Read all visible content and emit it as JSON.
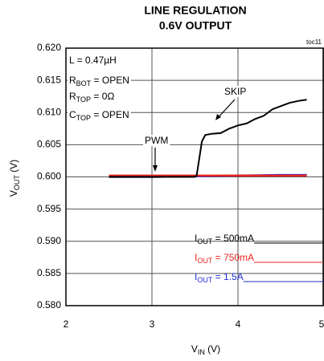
{
  "chart_data": {
    "type": "line",
    "title": [
      "LINE REGULATION",
      "0.6V OUTPUT"
    ],
    "note": "toc11",
    "xlabel": {
      "main": "V",
      "sub": "IN",
      "rest": " (V)"
    },
    "ylabel": {
      "main": "V",
      "sub": "OUT",
      "rest": " (V)"
    },
    "xlim": [
      2,
      5
    ],
    "xticks": [
      2,
      3,
      4,
      5
    ],
    "ylim": [
      0.58,
      0.62
    ],
    "yticks": [
      {
        "value": 0.58,
        "label": "0.580"
      },
      0.585,
      {
        "value": 0.59,
        "label": "0.590"
      },
      0.595,
      {
        "value": 0.6,
        "label": "0.600"
      },
      0.605,
      {
        "value": 0.61,
        "label": "0.610"
      },
      0.615,
      {
        "value": 0.62,
        "label": "0.620"
      }
    ],
    "grid": true,
    "annotations": [
      {
        "main": "L = 0.47µH"
      },
      {
        "main": "R",
        "sub": "BOT",
        "rest": " = OPEN"
      },
      {
        "main": "R",
        "sub": "TOP",
        "rest": " = 0Ω"
      },
      {
        "main": "C",
        "sub": "TOP",
        "rest": " = OPEN"
      },
      {
        "main": "SKIP"
      },
      {
        "main": "PWM"
      }
    ],
    "series": [
      {
        "name": {
          "main": "I",
          "sub": "OUT",
          "rest": " = 500mA"
        },
        "color": "#000000",
        "x": [
          2.5,
          2.8,
          3.1,
          3.4,
          3.5,
          3.52,
          3.58,
          3.62,
          3.7,
          3.8,
          3.9,
          4.0,
          4.1,
          4.2,
          4.3,
          4.4,
          4.5,
          4.6,
          4.7,
          4.8
        ],
        "values": [
          0.6,
          0.6,
          0.6,
          0.6,
          0.6,
          0.6002,
          0.6055,
          0.6065,
          0.6067,
          0.6068,
          0.6075,
          0.608,
          0.6083,
          0.609,
          0.6095,
          0.6105,
          0.611,
          0.6115,
          0.6118,
          0.612
        ]
      },
      {
        "name": {
          "main": "I",
          "sub": "OUT",
          "rest": " = 750mA"
        },
        "color": "#e8251f",
        "x": [
          2.5,
          3.0,
          3.5,
          4.0,
          4.5,
          4.8
        ],
        "values": [
          0.6002,
          0.6002,
          0.6002,
          0.6002,
          0.6002,
          0.6002
        ]
      },
      {
        "name": {
          "main": "I",
          "sub": "OUT",
          "rest": " = 1.5A"
        },
        "color": "#1f2fd6",
        "x": [
          2.5,
          3.0,
          3.5,
          4.0,
          4.5,
          4.8
        ],
        "values": [
          0.6,
          0.6,
          0.6001,
          0.6002,
          0.6003,
          0.6003
        ]
      }
    ]
  }
}
